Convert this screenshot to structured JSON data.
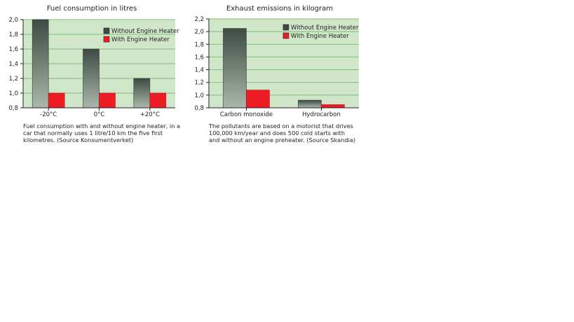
{
  "colors": {
    "plot_bg": "#cfe7c8",
    "grid": "#7fbf77",
    "without_top": "#3f4a42",
    "without_bottom": "#a9b8ac",
    "with": "#ee1c25",
    "axis": "#222222"
  },
  "charts": [
    {
      "caption": "Fuel consumption with and without engine heater, in a car that normally uses 1 litre/10 km the five first kilometres. (Source Konsumentverket)"
    },
    {
      "caption": "The pollutants are based on a motorist that drives 100,000 km/year and does 500 cold starts with and without an engine preheater. (Source Skandia)"
    }
  ],
  "chart_data": [
    {
      "type": "bar",
      "title": "Fuel consumption in litres",
      "categories": [
        "-20°C",
        "0°C",
        "+20°C"
      ],
      "series": [
        {
          "name": "Without Engine Heater",
          "values": [
            2.0,
            1.6,
            1.2
          ]
        },
        {
          "name": "With Engine Heater",
          "values": [
            1.0,
            1.0,
            1.0
          ]
        }
      ],
      "ylim": [
        0.8,
        2.0
      ],
      "yticks": [
        0.8,
        1.0,
        1.2,
        1.4,
        1.6,
        1.8,
        2.0
      ],
      "ytick_labels": [
        "0,8",
        "1,0",
        "1,2",
        "1,4",
        "1,6",
        "1,8",
        "2,0"
      ],
      "grid": true,
      "legend": "top-right"
    },
    {
      "type": "bar",
      "title": "Exhaust emissions in kilogram",
      "categories": [
        "Carbon monoxide",
        "Hydrocarbon"
      ],
      "series": [
        {
          "name": "Without Engine Heater",
          "values": [
            2.05,
            0.92
          ]
        },
        {
          "name": "With Engine Heater",
          "values": [
            1.08,
            0.85
          ]
        }
      ],
      "ylim": [
        0.8,
        2.2
      ],
      "yticks": [
        0.8,
        1.0,
        1.2,
        1.4,
        1.6,
        1.8,
        2.0,
        2.2
      ],
      "ytick_labels": [
        "0,8",
        "1,0",
        "1,2",
        "1,4",
        "1,6",
        "1,8",
        "2,0",
        "2,2"
      ],
      "grid": true,
      "legend": "top-right"
    }
  ]
}
